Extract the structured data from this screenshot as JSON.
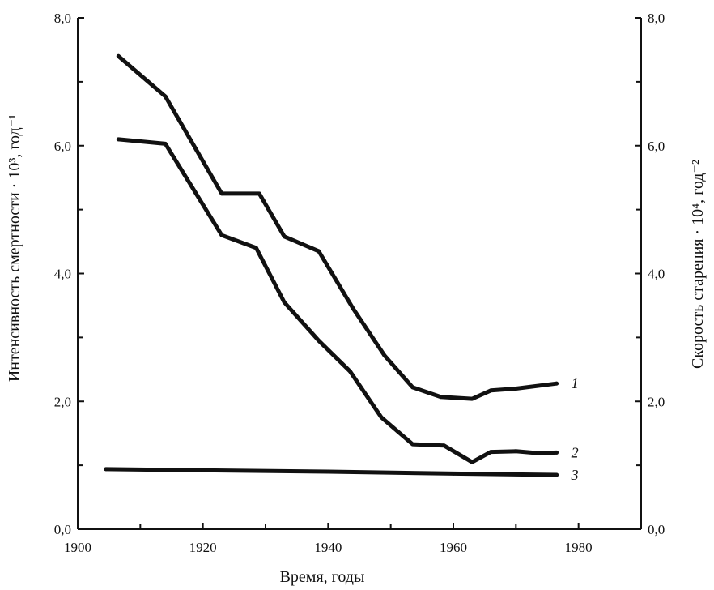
{
  "chart_data": {
    "type": "line",
    "xlabel": "Время, годы",
    "ylabel_left": "Интенсивность смертности · 10³, год⁻¹",
    "ylabel_right": "Скорость старения · 10⁴, год⁻²",
    "xlim": [
      1900,
      1990
    ],
    "ylim": [
      0,
      8
    ],
    "x_ticks": [
      1900,
      1920,
      1940,
      1960,
      1980
    ],
    "x_tick_labels": [
      "1900",
      "1920",
      "1940",
      "1960",
      "1980"
    ],
    "y_ticks": [
      0,
      2,
      4,
      6,
      8
    ],
    "y_tick_labels": [
      "0,0",
      "2,0",
      "4,0",
      "6,0",
      "8,0"
    ],
    "grid": false,
    "line_color": "#111111",
    "series": [
      {
        "name": "1",
        "points": [
          [
            1906.5,
            7.4
          ],
          [
            1914,
            6.77
          ],
          [
            1923,
            5.25
          ],
          [
            1929,
            5.25
          ],
          [
            1933,
            4.58
          ],
          [
            1938.5,
            4.35
          ],
          [
            1944,
            3.45
          ],
          [
            1949,
            2.72
          ],
          [
            1953.5,
            2.22
          ],
          [
            1958,
            2.07
          ],
          [
            1963,
            2.04
          ],
          [
            1966,
            2.17
          ],
          [
            1970,
            2.2
          ],
          [
            1976.5,
            2.28
          ]
        ]
      },
      {
        "name": "2",
        "points": [
          [
            1906.5,
            6.1
          ],
          [
            1914,
            6.03
          ],
          [
            1923,
            4.6
          ],
          [
            1928.5,
            4.4
          ],
          [
            1933,
            3.55
          ],
          [
            1938.5,
            2.95
          ],
          [
            1943.5,
            2.47
          ],
          [
            1948.5,
            1.75
          ],
          [
            1953.5,
            1.33
          ],
          [
            1958.5,
            1.31
          ],
          [
            1963,
            1.05
          ],
          [
            1966,
            1.21
          ],
          [
            1970,
            1.22
          ],
          [
            1973.5,
            1.19
          ],
          [
            1976.5,
            1.2
          ]
        ]
      },
      {
        "name": "3",
        "points": [
          [
            1904.5,
            0.94
          ],
          [
            1920,
            0.92
          ],
          [
            1940,
            0.9
          ],
          [
            1960,
            0.87
          ],
          [
            1976.5,
            0.85
          ]
        ]
      }
    ]
  }
}
